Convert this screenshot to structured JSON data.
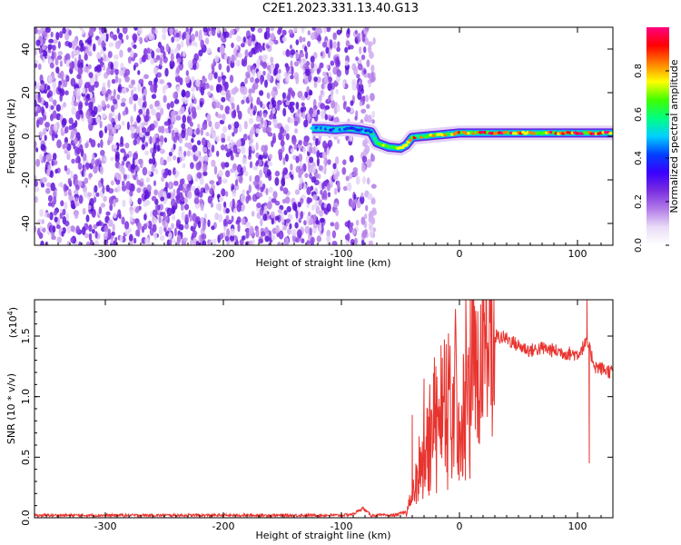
{
  "title": "C2E1.2023.331.13.40.G13",
  "colors": {
    "spectrogram_cmap": [
      "#ffffff",
      "#e9dcf6",
      "#b27be8",
      "#7a2ee0",
      "#3a00ff",
      "#0040ff",
      "#00d0ff",
      "#00ff80",
      "#40ff00",
      "#ffff00",
      "#ff8000",
      "#ff0000",
      "#ff0080"
    ],
    "snr_line": "#e8342f"
  },
  "chart_data": [
    {
      "type": "heatmap",
      "name": "spectrogram",
      "xlabel": "Height of straight line (km)",
      "ylabel": "Frequency (Hz)",
      "xlim": [
        -360,
        130
      ],
      "ylim": [
        -50,
        50
      ],
      "xticks": [
        -300,
        -200,
        -100,
        0,
        100
      ],
      "yticks": [
        -40,
        -20,
        0,
        20,
        40
      ],
      "colorbar": {
        "label": "Normalized spectral amplitude",
        "range": [
          0.0,
          1.0
        ],
        "ticks": [
          "0.0",
          "0.2",
          "0.4",
          "0.6",
          "0.8"
        ]
      },
      "noise_region_x": [
        -360,
        -72
      ],
      "gap_x": [
        -102,
        -98
      ],
      "signal_track": [
        {
          "x": -125,
          "f": 3.5,
          "a": 0.55
        },
        {
          "x": -115,
          "f": 3.5,
          "a": 0.45
        },
        {
          "x": -105,
          "f": 3.0,
          "a": 0.5
        },
        {
          "x": -95,
          "f": 3.5,
          "a": 0.5
        },
        {
          "x": -85,
          "f": 3.0,
          "a": 0.4
        },
        {
          "x": -75,
          "f": 2.0,
          "a": 0.45
        },
        {
          "x": -70,
          "f": -3.0,
          "a": 0.6
        },
        {
          "x": -60,
          "f": -5.0,
          "a": 0.75
        },
        {
          "x": -50,
          "f": -5.5,
          "a": 0.8
        },
        {
          "x": -45,
          "f": -4.0,
          "a": 0.75
        },
        {
          "x": -40,
          "f": -0.5,
          "a": 0.8
        },
        {
          "x": -30,
          "f": 0.0,
          "a": 0.8
        },
        {
          "x": -20,
          "f": 0.5,
          "a": 0.85
        },
        {
          "x": -10,
          "f": 1.0,
          "a": 0.8
        },
        {
          "x": 0,
          "f": 1.5,
          "a": 0.85
        },
        {
          "x": 20,
          "f": 1.5,
          "a": 0.9
        },
        {
          "x": 40,
          "f": 1.5,
          "a": 0.9
        },
        {
          "x": 60,
          "f": 1.5,
          "a": 0.9
        },
        {
          "x": 80,
          "f": 1.5,
          "a": 0.9
        },
        {
          "x": 100,
          "f": 1.5,
          "a": 0.9
        },
        {
          "x": 130,
          "f": 1.5,
          "a": 0.9
        }
      ]
    },
    {
      "type": "line",
      "name": "snr",
      "xlabel": "Height of straight line (km)",
      "ylabel": "SNR (10 * v/v)",
      "yscale_label": "(x10",
      "yscale_exp": "4",
      "yscale_close": ")",
      "xlim": [
        -360,
        130
      ],
      "ylim": [
        0,
        1.8
      ],
      "xticks": [
        -300,
        -200,
        -100,
        0,
        100
      ],
      "yticks": [
        "0.0",
        "0.5",
        "1.0",
        "1.5"
      ],
      "envelope": [
        {
          "x": -360,
          "y": 0.02
        },
        {
          "x": -100,
          "y": 0.02
        },
        {
          "x": -90,
          "y": 0.03
        },
        {
          "x": -82,
          "y": 0.08
        },
        {
          "x": -75,
          "y": 0.02
        },
        {
          "x": -55,
          "y": 0.02
        },
        {
          "x": -45,
          "y": 0.05
        },
        {
          "x": -40,
          "y": 0.2
        },
        {
          "x": -35,
          "y": 0.45
        },
        {
          "x": -30,
          "y": 0.6
        },
        {
          "x": -25,
          "y": 0.8
        },
        {
          "x": -20,
          "y": 0.95
        },
        {
          "x": -10,
          "y": 1.1
        },
        {
          "x": 0,
          "y": 1.25
        },
        {
          "x": 10,
          "y": 1.35
        },
        {
          "x": 20,
          "y": 1.45
        },
        {
          "x": 30,
          "y": 1.5
        },
        {
          "x": 40,
          "y": 1.48
        },
        {
          "x": 50,
          "y": 1.42
        },
        {
          "x": 60,
          "y": 1.38
        },
        {
          "x": 70,
          "y": 1.4
        },
        {
          "x": 80,
          "y": 1.38
        },
        {
          "x": 90,
          "y": 1.36
        },
        {
          "x": 100,
          "y": 1.35
        },
        {
          "x": 108,
          "y": 1.45
        },
        {
          "x": 115,
          "y": 1.25
        },
        {
          "x": 130,
          "y": 1.2
        }
      ],
      "spikes": [
        {
          "x": -40,
          "y": 0.85
        },
        {
          "x": -30,
          "y": 1.15
        },
        {
          "x": -27,
          "y": 0.9
        },
        {
          "x": -20,
          "y": 1.25
        },
        {
          "x": -15,
          "y": 1.1
        },
        {
          "x": 108,
          "y": 1.8
        },
        {
          "x": 110,
          "y": 0.45
        }
      ]
    }
  ]
}
